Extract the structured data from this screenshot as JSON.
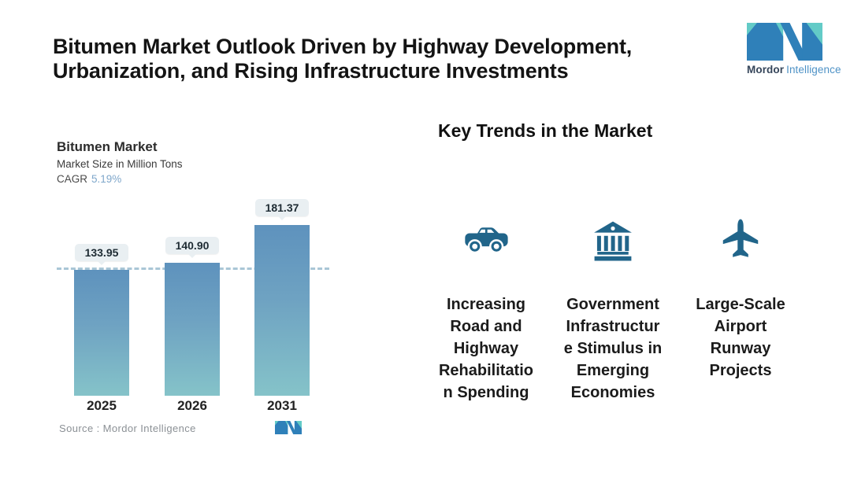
{
  "title": {
    "line1": "Bitumen Market Outlook Driven by Highway Development,",
    "line2": "Urbanization, and Rising Infrastructure Investments"
  },
  "brand": {
    "name_bold": "Mordor",
    "name_light": "Intelligence"
  },
  "chart": {
    "title": "Bitumen Market",
    "subtitle": "Market Size in Million Tons",
    "cagr_label": "CAGR",
    "cagr_value": "5.19%",
    "source": "Source :  Mordor Intelligence"
  },
  "chart_data": {
    "type": "bar",
    "title": "Bitumen Market",
    "subtitle": "Market Size in Million Tons",
    "unit": "Million Tons",
    "cagr_percent": 5.19,
    "categories": [
      "2025",
      "2026",
      "2031"
    ],
    "values": [
      133.95,
      140.9,
      181.37
    ],
    "value_labels": [
      "133.95",
      "140.90",
      "181.37"
    ],
    "ylim": [
      0,
      210
    ],
    "grid": false,
    "reference_line_value": 133.95,
    "legend": "none",
    "bar_gradient": [
      "#5E92BD",
      "#85C3C9"
    ]
  },
  "trends": {
    "heading": "Key Trends in the Market",
    "items": [
      {
        "icon": "car-icon",
        "label": "Increasing\nRoad and\nHighway\nRehabilitatio\nn Spending"
      },
      {
        "icon": "bank-icon",
        "label": "Government\nInfrastructur\ne Stimulus in\nEmerging\nEconomies"
      },
      {
        "icon": "airplane-icon",
        "label": "Large-Scale\nAirport\nRunway\nProjects"
      }
    ]
  },
  "colors": {
    "icon_blue": "#21658A",
    "bar_top": "#5E92BD",
    "bar_bottom": "#85C3C9",
    "cagr_blue": "#7FA7CB",
    "pill_bg": "#E9EFF2",
    "dashed_line": "#A9C6D6",
    "logo_teal": "#63CBC7",
    "logo_blue": "#2F80B9"
  }
}
